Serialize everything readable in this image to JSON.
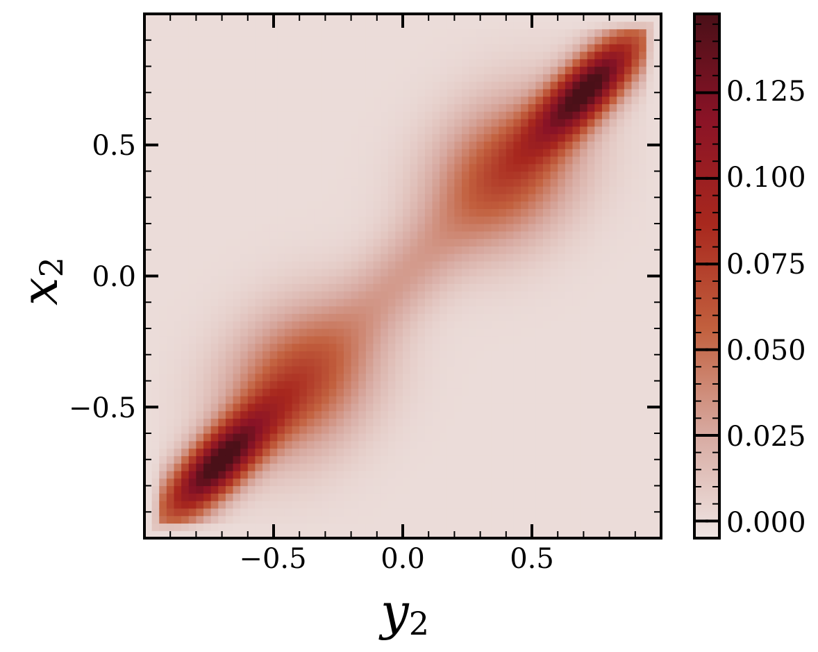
{
  "chart_data": {
    "type": "heatmap",
    "title": "",
    "xlabel": "y",
    "xlabel_subscript": "2",
    "ylabel": "x",
    "ylabel_subscript": "2",
    "xlim": [
      -1.0,
      1.0
    ],
    "ylim": [
      -1.0,
      1.0
    ],
    "x_ticks": [
      {
        "value": -0.5,
        "label": "−0.5"
      },
      {
        "value": 0.0,
        "label": "0.0"
      },
      {
        "value": 0.5,
        "label": "0.5"
      }
    ],
    "y_ticks": [
      {
        "value": -0.5,
        "label": "−0.5"
      },
      {
        "value": 0.0,
        "label": "0.0"
      },
      {
        "value": 0.5,
        "label": "0.5"
      }
    ],
    "colorbar": {
      "range": [
        -0.005,
        0.148
      ],
      "ticks": [
        {
          "value": 0.0,
          "label": "0.000"
        },
        {
          "value": 0.025,
          "label": "0.025"
        },
        {
          "value": 0.05,
          "label": "0.050"
        },
        {
          "value": 0.075,
          "label": "0.075"
        },
        {
          "value": 0.1,
          "label": "0.100"
        },
        {
          "value": 0.125,
          "label": "0.125"
        }
      ],
      "colors": [
        "#efe6e4",
        "#d7a9a0",
        "#c2603e",
        "#a8281e",
        "#8a1326",
        "#4a1018"
      ]
    },
    "density_model": {
      "peak_value": 0.148,
      "lobes": [
        {
          "center": [
            0.72,
            0.72
          ],
          "along_sd": 0.2,
          "across_sd": 0.07,
          "weight": 1.0
        },
        {
          "center": [
            -0.72,
            -0.72
          ],
          "along_sd": 0.2,
          "across_sd": 0.07,
          "weight": 1.0
        },
        {
          "center": [
            0.4,
            0.4
          ],
          "along_sd": 0.22,
          "across_sd": 0.17,
          "weight": 0.45
        },
        {
          "center": [
            -0.4,
            -0.4
          ],
          "along_sd": 0.22,
          "across_sd": 0.17,
          "weight": 0.45
        },
        {
          "center": [
            0.0,
            0.0
          ],
          "along_sd": 0.25,
          "across_sd": 0.1,
          "weight": 0.18
        }
      ],
      "grid_size": 70
    }
  }
}
